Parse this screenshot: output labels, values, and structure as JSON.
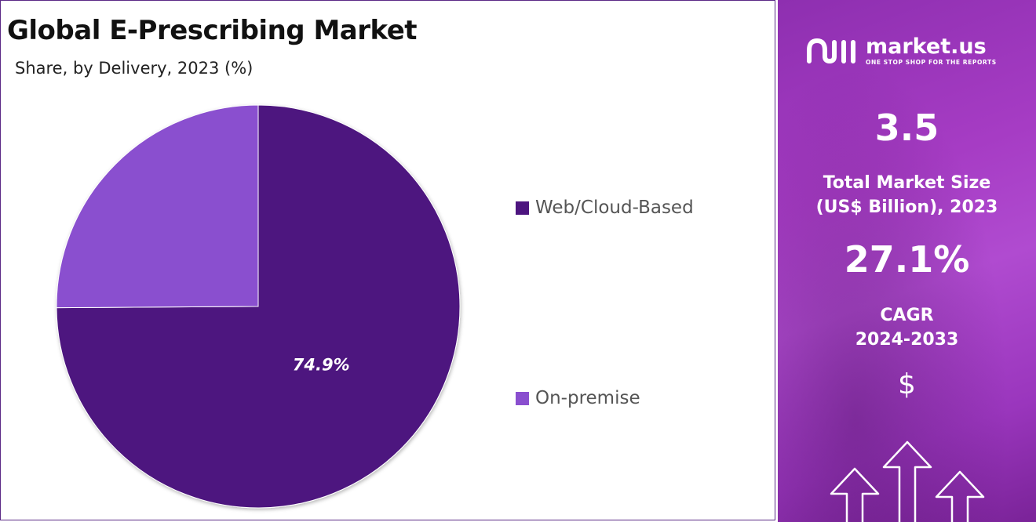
{
  "header": {
    "title": "Global E-Prescribing Market",
    "subtitle": "Share, by Delivery, 2023 (%)"
  },
  "chart_data": {
    "type": "pie",
    "slices": [
      {
        "label": "Web/Cloud-Based",
        "value": 74.9,
        "data_label": "74.9%",
        "color": "#4d157f"
      },
      {
        "label": "On-premise",
        "value": 25.1,
        "data_label": "",
        "color": "#8a4fcf"
      }
    ],
    "legend_position": "right"
  },
  "sidebar": {
    "brand": {
      "name": "market.us",
      "tagline": "ONE STOP SHOP FOR THE REPORTS"
    },
    "market_size": {
      "value": "3.5",
      "label_line1": "Total Market Size",
      "label_line2": "(US$ Billion), 2023"
    },
    "cagr": {
      "value": "27.1%",
      "label_line1": "CAGR",
      "label_line2": "2024-2033"
    },
    "currency_symbol": "$",
    "icons": [
      "brand-logo-icon",
      "up-arrow-icon"
    ],
    "colors": {
      "panel_accent": "#a63cc4"
    }
  }
}
